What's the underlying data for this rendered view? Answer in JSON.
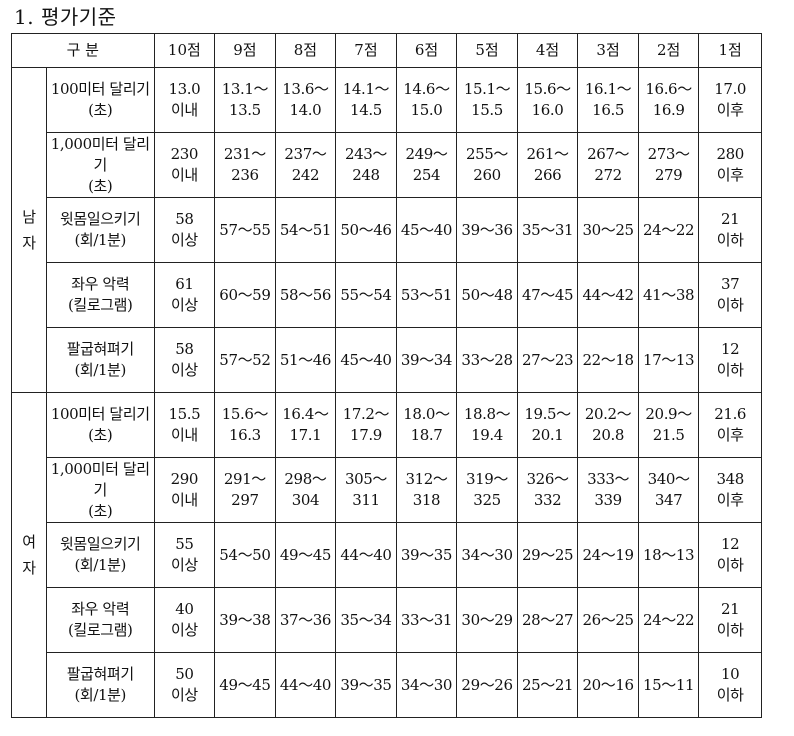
{
  "title": "1. 평가기준",
  "header": {
    "division": "구 분",
    "grades": [
      "10점",
      "9점",
      "8점",
      "7점",
      "6점",
      "5점",
      "4점",
      "3점",
      "2점",
      "1점"
    ]
  },
  "groups": [
    {
      "gender": [
        "남",
        "자"
      ],
      "rows": [
        {
          "event": [
            "100미터 달리기",
            "(초)"
          ],
          "cells": [
            [
              "13.0",
              "이내"
            ],
            [
              "13.1～",
              "13.5"
            ],
            [
              "13.6～",
              "14.0"
            ],
            [
              "14.1～",
              "14.5"
            ],
            [
              "14.6～",
              "15.0"
            ],
            [
              "15.1～",
              "15.5"
            ],
            [
              "15.6～",
              "16.0"
            ],
            [
              "16.1～",
              "16.5"
            ],
            [
              "16.6～",
              "16.9"
            ],
            [
              "17.0",
              "이후"
            ]
          ]
        },
        {
          "event": [
            "1,000미터 달리기",
            "(초)"
          ],
          "cells": [
            [
              "230",
              "이내"
            ],
            [
              "231～",
              "236"
            ],
            [
              "237～",
              "242"
            ],
            [
              "243～",
              "248"
            ],
            [
              "249～",
              "254"
            ],
            [
              "255～",
              "260"
            ],
            [
              "261～",
              "266"
            ],
            [
              "267～",
              "272"
            ],
            [
              "273～",
              "279"
            ],
            [
              "280",
              "이후"
            ]
          ]
        },
        {
          "event": [
            "윗몸일으키기",
            "(회/1분)"
          ],
          "cells": [
            [
              "58",
              "이상"
            ],
            [
              "57～55"
            ],
            [
              "54～51"
            ],
            [
              "50～46"
            ],
            [
              "45～40"
            ],
            [
              "39～36"
            ],
            [
              "35～31"
            ],
            [
              "30～25"
            ],
            [
              "24～22"
            ],
            [
              "21",
              "이하"
            ]
          ]
        },
        {
          "event": [
            "좌우 악력",
            "(킬로그램)"
          ],
          "cells": [
            [
              "61",
              "이상"
            ],
            [
              "60～59"
            ],
            [
              "58～56"
            ],
            [
              "55～54"
            ],
            [
              "53～51"
            ],
            [
              "50～48"
            ],
            [
              "47～45"
            ],
            [
              "44～42"
            ],
            [
              "41～38"
            ],
            [
              "37",
              "이하"
            ]
          ]
        },
        {
          "event": [
            "팔굽혀펴기",
            "(회/1분)"
          ],
          "cells": [
            [
              "58",
              "이상"
            ],
            [
              "57～52"
            ],
            [
              "51～46"
            ],
            [
              "45～40"
            ],
            [
              "39～34"
            ],
            [
              "33～28"
            ],
            [
              "27～23"
            ],
            [
              "22～18"
            ],
            [
              "17～13"
            ],
            [
              "12",
              "이하"
            ]
          ]
        }
      ]
    },
    {
      "gender": [
        "여",
        "자"
      ],
      "rows": [
        {
          "event": [
            "100미터 달리기",
            "(초)"
          ],
          "cells": [
            [
              "15.5",
              "이내"
            ],
            [
              "15.6～",
              "16.3"
            ],
            [
              "16.4～",
              "17.1"
            ],
            [
              "17.2～",
              "17.9"
            ],
            [
              "18.0～",
              "18.7"
            ],
            [
              "18.8～",
              "19.4"
            ],
            [
              "19.5～",
              "20.1"
            ],
            [
              "20.2～",
              "20.8"
            ],
            [
              "20.9～",
              "21.5"
            ],
            [
              "21.6",
              "이후"
            ]
          ]
        },
        {
          "event": [
            "1,000미터 달리기",
            "(초)"
          ],
          "cells": [
            [
              "290",
              "이내"
            ],
            [
              "291～",
              "297"
            ],
            [
              "298～",
              "304"
            ],
            [
              "305～",
              "311"
            ],
            [
              "312～",
              "318"
            ],
            [
              "319～",
              "325"
            ],
            [
              "326～",
              "332"
            ],
            [
              "333～",
              "339"
            ],
            [
              "340～",
              "347"
            ],
            [
              "348",
              "이후"
            ]
          ]
        },
        {
          "event": [
            "윗몸일으키기",
            "(회/1분)"
          ],
          "cells": [
            [
              "55",
              "이상"
            ],
            [
              "54～50"
            ],
            [
              "49～45"
            ],
            [
              "44～40"
            ],
            [
              "39～35"
            ],
            [
              "34～30"
            ],
            [
              "29～25"
            ],
            [
              "24～19"
            ],
            [
              "18～13"
            ],
            [
              "12",
              "이하"
            ]
          ]
        },
        {
          "event": [
            "좌우 악력",
            "(킬로그램)"
          ],
          "cells": [
            [
              "40",
              "이상"
            ],
            [
              "39～38"
            ],
            [
              "37～36"
            ],
            [
              "35～34"
            ],
            [
              "33～31"
            ],
            [
              "30～29"
            ],
            [
              "28～27"
            ],
            [
              "26～25"
            ],
            [
              "24～22"
            ],
            [
              "21",
              "이하"
            ]
          ]
        },
        {
          "event": [
            "팔굽혀펴기",
            "(회/1분)"
          ],
          "cells": [
            [
              "50",
              "이상"
            ],
            [
              "49～45"
            ],
            [
              "44～40"
            ],
            [
              "39～35"
            ],
            [
              "34～30"
            ],
            [
              "29～26"
            ],
            [
              "25～21"
            ],
            [
              "20～16"
            ],
            [
              "15～11"
            ],
            [
              "10",
              "이하"
            ]
          ]
        }
      ]
    }
  ]
}
